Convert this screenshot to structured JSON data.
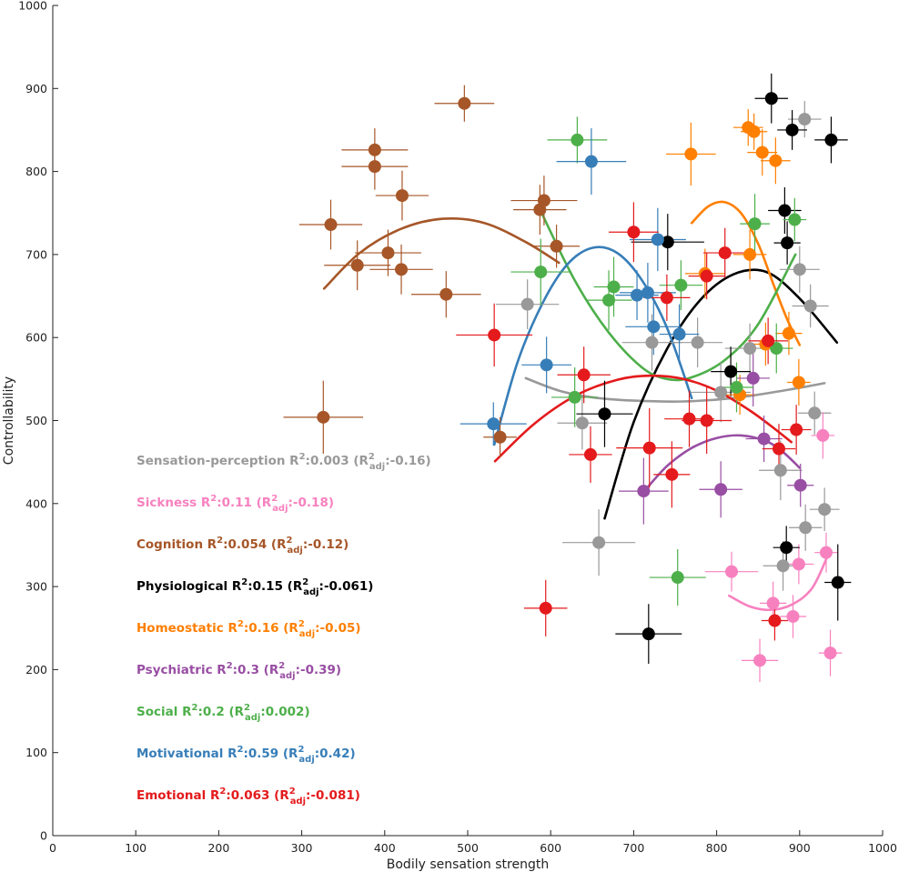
{
  "chart_data": {
    "type": "scatter",
    "xlabel": "Bodily sensation strength",
    "ylabel": "Controllability",
    "xlim": [
      0,
      1000
    ],
    "ylim": [
      0,
      1000
    ],
    "x_ticks": [
      0,
      100,
      200,
      300,
      400,
      500,
      600,
      700,
      800,
      900,
      1000
    ],
    "y_ticks": [
      0,
      100,
      200,
      300,
      400,
      500,
      600,
      700,
      800,
      900,
      1000
    ],
    "legend_position": "left",
    "grid": false,
    "series": [
      {
        "name": "Sensation-perception",
        "color": "#999999",
        "r2": "0.003",
        "r2adj": "-0.16",
        "fit": {
          "x": [
            570,
            610,
            650,
            700,
            760,
            820,
            880,
            930
          ],
          "y": [
            551,
            536,
            528,
            524,
            523,
            527,
            536,
            545
          ]
        },
        "points": [
          {
            "x": 572,
            "y": 640,
            "ex": 38,
            "ey": 30
          },
          {
            "x": 638,
            "y": 497,
            "ex": 30,
            "ey": 32
          },
          {
            "x": 658,
            "y": 353,
            "ex": 44,
            "ey": 40
          },
          {
            "x": 722,
            "y": 594,
            "ex": 36,
            "ey": 34
          },
          {
            "x": 777,
            "y": 594,
            "ex": 30,
            "ey": 30
          },
          {
            "x": 805,
            "y": 534,
            "ex": 36,
            "ey": 36
          },
          {
            "x": 840,
            "y": 587,
            "ex": 30,
            "ey": 30
          },
          {
            "x": 877,
            "y": 440,
            "ex": 26,
            "ey": 36
          },
          {
            "x": 880,
            "y": 325,
            "ex": 24,
            "ey": 30
          },
          {
            "x": 900,
            "y": 682,
            "ex": 24,
            "ey": 28
          },
          {
            "x": 906,
            "y": 863,
            "ex": 20,
            "ey": 22
          },
          {
            "x": 907,
            "y": 371,
            "ex": 20,
            "ey": 28
          },
          {
            "x": 913,
            "y": 638,
            "ex": 22,
            "ey": 26
          },
          {
            "x": 918,
            "y": 509,
            "ex": 20,
            "ey": 26
          },
          {
            "x": 930,
            "y": 393,
            "ex": 18,
            "ey": 26
          }
        ]
      },
      {
        "name": "Sickness",
        "color": "#f781bf",
        "r2": "0.11",
        "r2adj": "-0.18",
        "fit": {
          "x": [
            815,
            840,
            865,
            890,
            915,
            935
          ],
          "y": [
            289,
            276,
            272,
            278,
            298,
            340
          ]
        },
        "points": [
          {
            "x": 818,
            "y": 318,
            "ex": 32,
            "ey": 24
          },
          {
            "x": 852,
            "y": 211,
            "ex": 22,
            "ey": 26
          },
          {
            "x": 868,
            "y": 280,
            "ex": 16,
            "ey": 26
          },
          {
            "x": 892,
            "y": 264,
            "ex": 16,
            "ey": 26
          },
          {
            "x": 899,
            "y": 327,
            "ex": 18,
            "ey": 24
          },
          {
            "x": 928,
            "y": 482,
            "ex": 14,
            "ey": 28
          },
          {
            "x": 932,
            "y": 341,
            "ex": 14,
            "ey": 24
          },
          {
            "x": 937,
            "y": 220,
            "ex": 14,
            "ey": 28
          }
        ]
      },
      {
        "name": "Cognition",
        "color": "#a65628",
        "r2": "0.054",
        "r2adj": "-0.12",
        "fit": {
          "x": [
            327,
            370,
            420,
            470,
            520,
            570,
            610
          ],
          "y": [
            659,
            702,
            731,
            743,
            738,
            715,
            690
          ]
        },
        "points": [
          {
            "x": 326,
            "y": 504,
            "ex": 48,
            "ey": 44
          },
          {
            "x": 335,
            "y": 736,
            "ex": 38,
            "ey": 30
          },
          {
            "x": 367,
            "y": 687,
            "ex": 40,
            "ey": 30
          },
          {
            "x": 388,
            "y": 826,
            "ex": 40,
            "ey": 26
          },
          {
            "x": 388,
            "y": 806,
            "ex": 40,
            "ey": 28
          },
          {
            "x": 404,
            "y": 702,
            "ex": 40,
            "ey": 28
          },
          {
            "x": 420,
            "y": 682,
            "ex": 38,
            "ey": 30
          },
          {
            "x": 421,
            "y": 771,
            "ex": 32,
            "ey": 30
          },
          {
            "x": 474,
            "y": 652,
            "ex": 42,
            "ey": 28
          },
          {
            "x": 496,
            "y": 882,
            "ex": 36,
            "ey": 22
          },
          {
            "x": 539,
            "y": 480,
            "ex": 20,
            "ey": 24
          },
          {
            "x": 587,
            "y": 754,
            "ex": 32,
            "ey": 30
          },
          {
            "x": 592,
            "y": 765,
            "ex": 40,
            "ey": 30
          },
          {
            "x": 607,
            "y": 710,
            "ex": 28,
            "ey": 26
          }
        ]
      },
      {
        "name": "Physiological",
        "color": "#000000",
        "r2": "0.15",
        "r2adj": "-0.061",
        "fit": {
          "x": [
            665,
            700,
            740,
            780,
            820,
            860,
            900,
            945
          ],
          "y": [
            382,
            498,
            586,
            645,
            676,
            679,
            647,
            594
          ]
        },
        "points": [
          {
            "x": 665,
            "y": 508,
            "ex": 34,
            "ey": 40
          },
          {
            "x": 718,
            "y": 243,
            "ex": 40,
            "ey": 36
          },
          {
            "x": 741,
            "y": 715,
            "ex": 44,
            "ey": 34
          },
          {
            "x": 817,
            "y": 559,
            "ex": 24,
            "ey": 30
          },
          {
            "x": 866,
            "y": 888,
            "ex": 20,
            "ey": 30
          },
          {
            "x": 882,
            "y": 753,
            "ex": 20,
            "ey": 28
          },
          {
            "x": 884,
            "y": 347,
            "ex": 16,
            "ey": 26
          },
          {
            "x": 885,
            "y": 714,
            "ex": 16,
            "ey": 26
          },
          {
            "x": 891,
            "y": 850,
            "ex": 18,
            "ey": 24
          },
          {
            "x": 938,
            "y": 838,
            "ex": 20,
            "ey": 28
          },
          {
            "x": 946,
            "y": 305,
            "ex": 16,
            "ey": 46
          }
        ]
      },
      {
        "name": "Homeostatic",
        "color": "#ff7f00",
        "r2": "0.16",
        "r2adj": "-0.05",
        "fit": {
          "x": [
            770,
            790,
            810,
            830,
            850,
            870,
            885,
            900
          ],
          "y": [
            738,
            758,
            763,
            749,
            713,
            660,
            622,
            591
          ]
        },
        "points": [
          {
            "x": 769,
            "y": 821,
            "ex": 30,
            "ey": 38
          },
          {
            "x": 786,
            "y": 677,
            "ex": 24,
            "ey": 30
          },
          {
            "x": 828,
            "y": 531,
            "ex": 18,
            "ey": 24
          },
          {
            "x": 838,
            "y": 853,
            "ex": 18,
            "ey": 22
          },
          {
            "x": 840,
            "y": 700,
            "ex": 20,
            "ey": 30
          },
          {
            "x": 845,
            "y": 848,
            "ex": 16,
            "ey": 22
          },
          {
            "x": 855,
            "y": 823,
            "ex": 18,
            "ey": 28
          },
          {
            "x": 859,
            "y": 592,
            "ex": 16,
            "ey": 26
          },
          {
            "x": 871,
            "y": 813,
            "ex": 18,
            "ey": 28
          },
          {
            "x": 887,
            "y": 605,
            "ex": 16,
            "ey": 26
          },
          {
            "x": 899,
            "y": 546,
            "ex": 14,
            "ey": 28
          }
        ]
      },
      {
        "name": "Psychiatric",
        "color": "#984ea3",
        "r2": "0.3",
        "r2adj": "-0.39",
        "fit": {
          "x": [
            712,
            740,
            770,
            800,
            830,
            860,
            880,
            900
          ],
          "y": [
            414,
            445,
            467,
            479,
            482,
            475,
            462,
            443
          ]
        },
        "points": [
          {
            "x": 712,
            "y": 415,
            "ex": 30,
            "ey": 40
          },
          {
            "x": 805,
            "y": 417,
            "ex": 26,
            "ey": 34
          },
          {
            "x": 844,
            "y": 551,
            "ex": 20,
            "ey": 34
          },
          {
            "x": 857,
            "y": 478,
            "ex": 22,
            "ey": 28
          },
          {
            "x": 901,
            "y": 422,
            "ex": 16,
            "ey": 26
          }
        ]
      },
      {
        "name": "Social",
        "color": "#4daf4a",
        "r2": "0.2",
        "r2adj": "0.002",
        "fit": {
          "x": [
            590,
            630,
            670,
            710,
            740,
            770,
            810,
            850,
            895
          ],
          "y": [
            748,
            667,
            606,
            564,
            550,
            552,
            573,
            616,
            700
          ]
        },
        "points": [
          {
            "x": 588,
            "y": 679,
            "ex": 36,
            "ey": 40
          },
          {
            "x": 629,
            "y": 528,
            "ex": 28,
            "ey": 36
          },
          {
            "x": 632,
            "y": 838,
            "ex": 36,
            "ey": 28
          },
          {
            "x": 670,
            "y": 645,
            "ex": 28,
            "ey": 36
          },
          {
            "x": 676,
            "y": 661,
            "ex": 24,
            "ey": 36
          },
          {
            "x": 753,
            "y": 311,
            "ex": 34,
            "ey": 34
          },
          {
            "x": 757,
            "y": 663,
            "ex": 26,
            "ey": 30
          },
          {
            "x": 824,
            "y": 540,
            "ex": 20,
            "ey": 30
          },
          {
            "x": 846,
            "y": 737,
            "ex": 18,
            "ey": 36
          },
          {
            "x": 872,
            "y": 587,
            "ex": 20,
            "ey": 30
          },
          {
            "x": 894,
            "y": 742,
            "ex": 14,
            "ey": 26
          }
        ]
      },
      {
        "name": "Motivational",
        "color": "#377eb8",
        "r2": "0.59",
        "r2adj": "0.42",
        "fit": {
          "x": [
            532,
            560,
            590,
            620,
            650,
            680,
            710,
            740,
            770
          ],
          "y": [
            471,
            570,
            641,
            688,
            708,
            702,
            669,
            612,
            527
          ]
        },
        "points": [
          {
            "x": 531,
            "y": 496,
            "ex": 40,
            "ey": 26
          },
          {
            "x": 595,
            "y": 567,
            "ex": 30,
            "ey": 34
          },
          {
            "x": 649,
            "y": 812,
            "ex": 42,
            "ey": 40
          },
          {
            "x": 704,
            "y": 651,
            "ex": 26,
            "ey": 30
          },
          {
            "x": 717,
            "y": 654,
            "ex": 34,
            "ey": 36
          },
          {
            "x": 724,
            "y": 613,
            "ex": 34,
            "ey": 34
          },
          {
            "x": 729,
            "y": 718,
            "ex": 34,
            "ey": 38
          },
          {
            "x": 755,
            "y": 604,
            "ex": 24,
            "ey": 36
          }
        ]
      },
      {
        "name": "Emotional",
        "color": "#e41a1c",
        "r2": "0.063",
        "r2adj": "-0.081",
        "fit": {
          "x": [
            533,
            580,
            630,
            680,
            720,
            760,
            800,
            840,
            870,
            890
          ],
          "y": [
            451,
            496,
            530,
            549,
            554,
            550,
            536,
            512,
            490,
            474
          ]
        },
        "points": [
          {
            "x": 532,
            "y": 603,
            "ex": 46,
            "ey": 38
          },
          {
            "x": 594,
            "y": 274,
            "ex": 26,
            "ey": 34
          },
          {
            "x": 640,
            "y": 555,
            "ex": 32,
            "ey": 34
          },
          {
            "x": 648,
            "y": 459,
            "ex": 26,
            "ey": 34
          },
          {
            "x": 700,
            "y": 727,
            "ex": 30,
            "ey": 36
          },
          {
            "x": 719,
            "y": 467,
            "ex": 40,
            "ey": 48
          },
          {
            "x": 740,
            "y": 648,
            "ex": 28,
            "ey": 28
          },
          {
            "x": 746,
            "y": 435,
            "ex": 22,
            "ey": 40
          },
          {
            "x": 767,
            "y": 502,
            "ex": 30,
            "ey": 34
          },
          {
            "x": 788,
            "y": 500,
            "ex": 30,
            "ey": 40
          },
          {
            "x": 788,
            "y": 674,
            "ex": 22,
            "ey": 28
          },
          {
            "x": 810,
            "y": 702,
            "ex": 26,
            "ey": 30
          },
          {
            "x": 862,
            "y": 596,
            "ex": 24,
            "ey": 28
          },
          {
            "x": 870,
            "y": 259,
            "ex": 16,
            "ey": 24
          },
          {
            "x": 875,
            "y": 466,
            "ex": 20,
            "ey": 30
          },
          {
            "x": 896,
            "y": 489,
            "ex": 18,
            "ey": 30
          }
        ]
      }
    ]
  }
}
